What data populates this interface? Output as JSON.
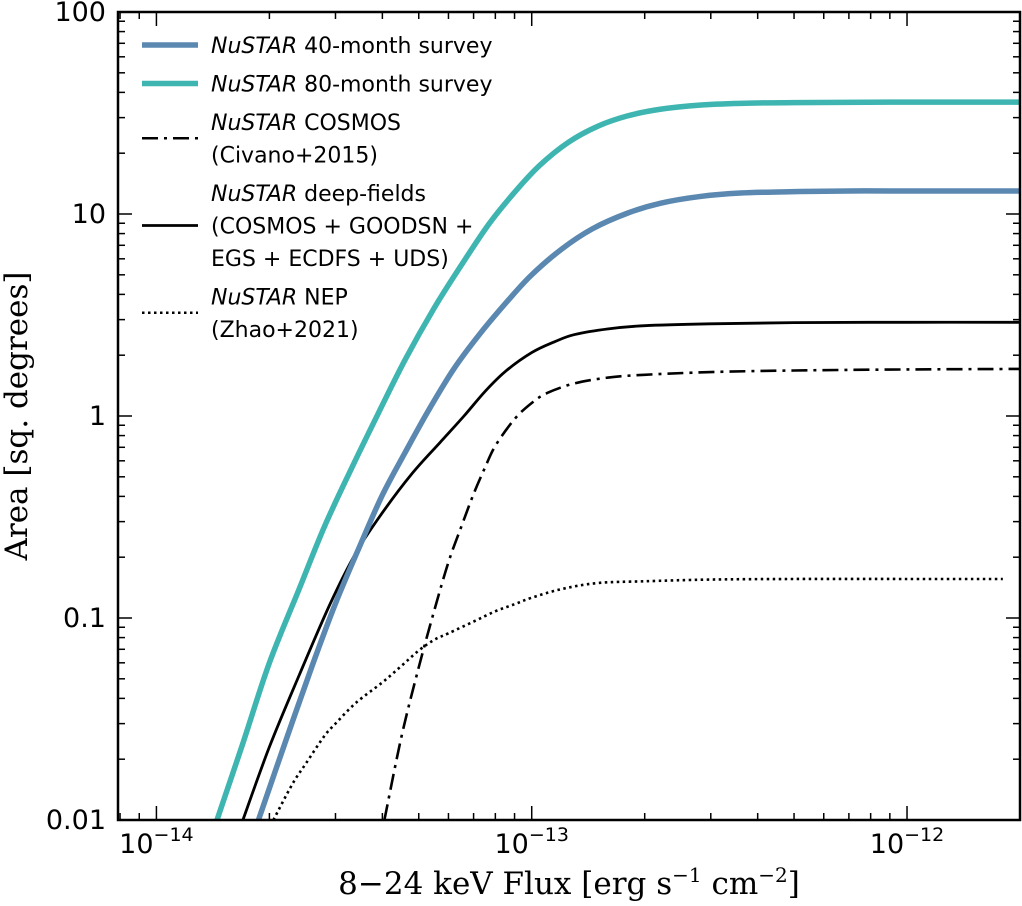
{
  "chart_data": {
    "type": "line",
    "xscale": "log",
    "yscale": "log",
    "xlabel": {
      "prefix": "8−24 keV Flux [erg s",
      "sup1": "−1",
      "mid": " cm",
      "sup2": "−2",
      "suffix": "]"
    },
    "ylabel": "Area [sq. degrees]",
    "xlim": [
      7.9e-15,
      2e-12
    ],
    "ylim": [
      0.01,
      100
    ],
    "yticks": [
      {
        "value": 0.01,
        "label": "0.01"
      },
      {
        "value": 0.1,
        "label": "0.1"
      },
      {
        "value": 1,
        "label": "1"
      },
      {
        "value": 10,
        "label": "10"
      },
      {
        "value": 100,
        "label": "100"
      }
    ],
    "xticks": [
      {
        "value": 1e-14,
        "base": "10",
        "exp": "−14"
      },
      {
        "value": 1e-13,
        "base": "10",
        "exp": "−13"
      },
      {
        "value": 1e-12,
        "base": "10",
        "exp": "−12"
      }
    ],
    "legend_position": "top-left",
    "series": [
      {
        "name": "NuSTAR 40-month survey",
        "legend": [
          "NuSTAR| 40-month survey"
        ],
        "style": "solid-thick",
        "color": "#5b88b0",
        "points": [
          [
            1.87e-14,
            0.01
          ],
          [
            2.2e-14,
            0.024
          ],
          [
            2.6e-14,
            0.058
          ],
          [
            3e-14,
            0.118
          ],
          [
            3.5e-14,
            0.232
          ],
          [
            4e-14,
            0.406
          ],
          [
            4.6e-14,
            0.66
          ],
          [
            5.3e-14,
            1.06
          ],
          [
            6.2e-14,
            1.71
          ],
          [
            7.3e-14,
            2.57
          ],
          [
            8.7e-14,
            3.78
          ],
          [
            1e-13,
            5.0
          ],
          [
            1.2e-13,
            6.69
          ],
          [
            1.45e-13,
            8.44
          ],
          [
            1.8e-13,
            10.1
          ],
          [
            2.2e-13,
            11.3
          ],
          [
            2.8e-13,
            12.2
          ],
          [
            3.6e-13,
            12.7
          ],
          [
            5e-13,
            12.9
          ],
          [
            7e-13,
            13.0
          ],
          [
            1e-12,
            13.0
          ],
          [
            2e-12,
            13.0
          ]
        ]
      },
      {
        "name": "NuSTAR 80-month survey",
        "legend": [
          "NuSTAR| 80-month survey"
        ],
        "style": "solid-thick",
        "color": "#3eb5b0",
        "points": [
          [
            1.45e-14,
            0.01
          ],
          [
            1.7e-14,
            0.024
          ],
          [
            2e-14,
            0.06
          ],
          [
            2.4e-14,
            0.139
          ],
          [
            2.8e-14,
            0.282
          ],
          [
            3.3e-14,
            0.544
          ],
          [
            3.9e-14,
            1.03
          ],
          [
            4.6e-14,
            1.9
          ],
          [
            5.5e-14,
            3.43
          ],
          [
            6.5e-14,
            5.6
          ],
          [
            7.7e-14,
            8.95
          ],
          [
            9e-14,
            12.8
          ],
          [
            1.05e-13,
            17.4
          ],
          [
            1.25e-13,
            22.6
          ],
          [
            1.5e-13,
            27.2
          ],
          [
            1.8e-13,
            30.6
          ],
          [
            2.2e-13,
            33.0
          ],
          [
            2.8e-13,
            34.6
          ],
          [
            3.6e-13,
            35.3
          ],
          [
            5e-13,
            35.6
          ],
          [
            1e-12,
            35.8
          ],
          [
            2e-12,
            35.8
          ]
        ]
      },
      {
        "name": "NuSTAR COSMOS (Civano+2015)",
        "legend": [
          "NuSTAR| COSMOS",
          "|(Civano+2015)"
        ],
        "style": "dashdot",
        "color": "#000000",
        "points": [
          [
            4.05e-14,
            0.01
          ],
          [
            4.5e-14,
            0.026
          ],
          [
            5e-14,
            0.057
          ],
          [
            5.5e-14,
            0.109
          ],
          [
            6e-14,
            0.189
          ],
          [
            6.5e-14,
            0.285
          ],
          [
            7e-14,
            0.411
          ],
          [
            7.5e-14,
            0.553
          ],
          [
            8e-14,
            0.712
          ],
          [
            9e-14,
            0.965
          ],
          [
            1e-13,
            1.16
          ],
          [
            1.1e-13,
            1.3
          ],
          [
            1.3e-13,
            1.45
          ],
          [
            1.6e-13,
            1.55
          ],
          [
            2e-13,
            1.6
          ],
          [
            3e-13,
            1.65
          ],
          [
            5e-13,
            1.68
          ],
          [
            1e-12,
            1.7
          ],
          [
            2e-12,
            1.71
          ]
        ]
      },
      {
        "name": "NuSTAR deep-fields (COSMOS + GOODSN + EGS + ECDFS + UDS)",
        "legend": [
          "NuSTAR| deep-fields",
          "|(COSMOS + GOODSN +",
          "|EGS + ECDFS + UDS)"
        ],
        "style": "solid",
        "color": "#000000",
        "points": [
          [
            1.7e-14,
            0.01
          ],
          [
            2e-14,
            0.023
          ],
          [
            2.4e-14,
            0.052
          ],
          [
            2.9e-14,
            0.117
          ],
          [
            3.4e-14,
            0.21
          ],
          [
            4e-14,
            0.332
          ],
          [
            4.8e-14,
            0.519
          ],
          [
            5.7e-14,
            0.74
          ],
          [
            6.6e-14,
            1.0
          ],
          [
            7.5e-14,
            1.32
          ],
          [
            8.5e-14,
            1.66
          ],
          [
            1e-13,
            2.06
          ],
          [
            1.15e-13,
            2.33
          ],
          [
            1.3e-13,
            2.53
          ],
          [
            1.6e-13,
            2.7
          ],
          [
            2e-13,
            2.8
          ],
          [
            3e-13,
            2.86
          ],
          [
            5e-13,
            2.9
          ],
          [
            1e-12,
            2.91
          ],
          [
            2e-12,
            2.91
          ]
        ]
      },
      {
        "name": "NuSTAR NEP (Zhao+2021)",
        "legend": [
          "NuSTAR| NEP",
          "|(Zhao+2021)"
        ],
        "style": "dotted",
        "color": "#000000",
        "points": [
          [
            2.05e-14,
            0.01
          ],
          [
            2.3e-14,
            0.015
          ],
          [
            2.5e-14,
            0.019
          ],
          [
            2.8e-14,
            0.026
          ],
          [
            3e-14,
            0.03
          ],
          [
            3.4e-14,
            0.038
          ],
          [
            4e-14,
            0.048
          ],
          [
            4.5e-14,
            0.058
          ],
          [
            5e-14,
            0.069
          ],
          [
            5.5e-14,
            0.078
          ],
          [
            6e-14,
            0.084
          ],
          [
            7e-14,
            0.096
          ],
          [
            8e-14,
            0.108
          ],
          [
            9e-14,
            0.117
          ],
          [
            1e-13,
            0.126
          ],
          [
            1.2e-13,
            0.139
          ],
          [
            1.5e-13,
            0.149
          ],
          [
            2e-13,
            0.152
          ],
          [
            3e-13,
            0.155
          ],
          [
            5e-13,
            0.156
          ],
          [
            1e-12,
            0.156
          ],
          [
            1.8e-12,
            0.156
          ]
        ]
      }
    ]
  }
}
